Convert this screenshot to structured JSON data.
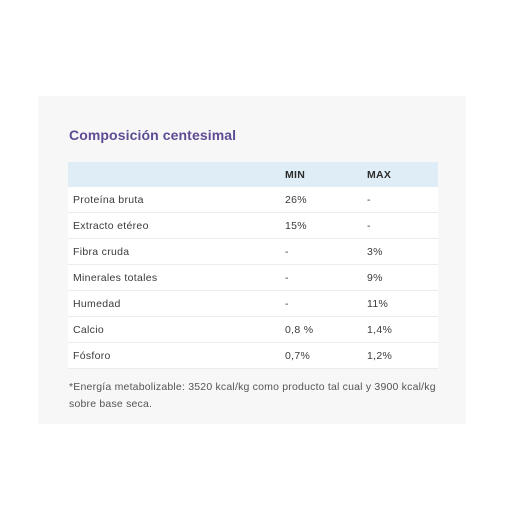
{
  "title": "Composición centesimal",
  "table": {
    "headers": [
      "",
      "MIN",
      "MAX"
    ],
    "rows": [
      [
        "Proteína bruta",
        "26%",
        "-"
      ],
      [
        "Extracto etéreo",
        "15%",
        "-"
      ],
      [
        "Fibra cruda",
        "-",
        "3%"
      ],
      [
        "Minerales totales",
        "-",
        "9%"
      ],
      [
        "Humedad",
        "-",
        "11%"
      ],
      [
        "Calcio",
        "0,8 %",
        "1,4%"
      ],
      [
        "Fósforo",
        "0,7%",
        "1,2%"
      ]
    ]
  },
  "footnote": "*Energía metabolizable: 3520 kcal/kg como producto tal cual y 3900 kcal/kg sobre base seca."
}
